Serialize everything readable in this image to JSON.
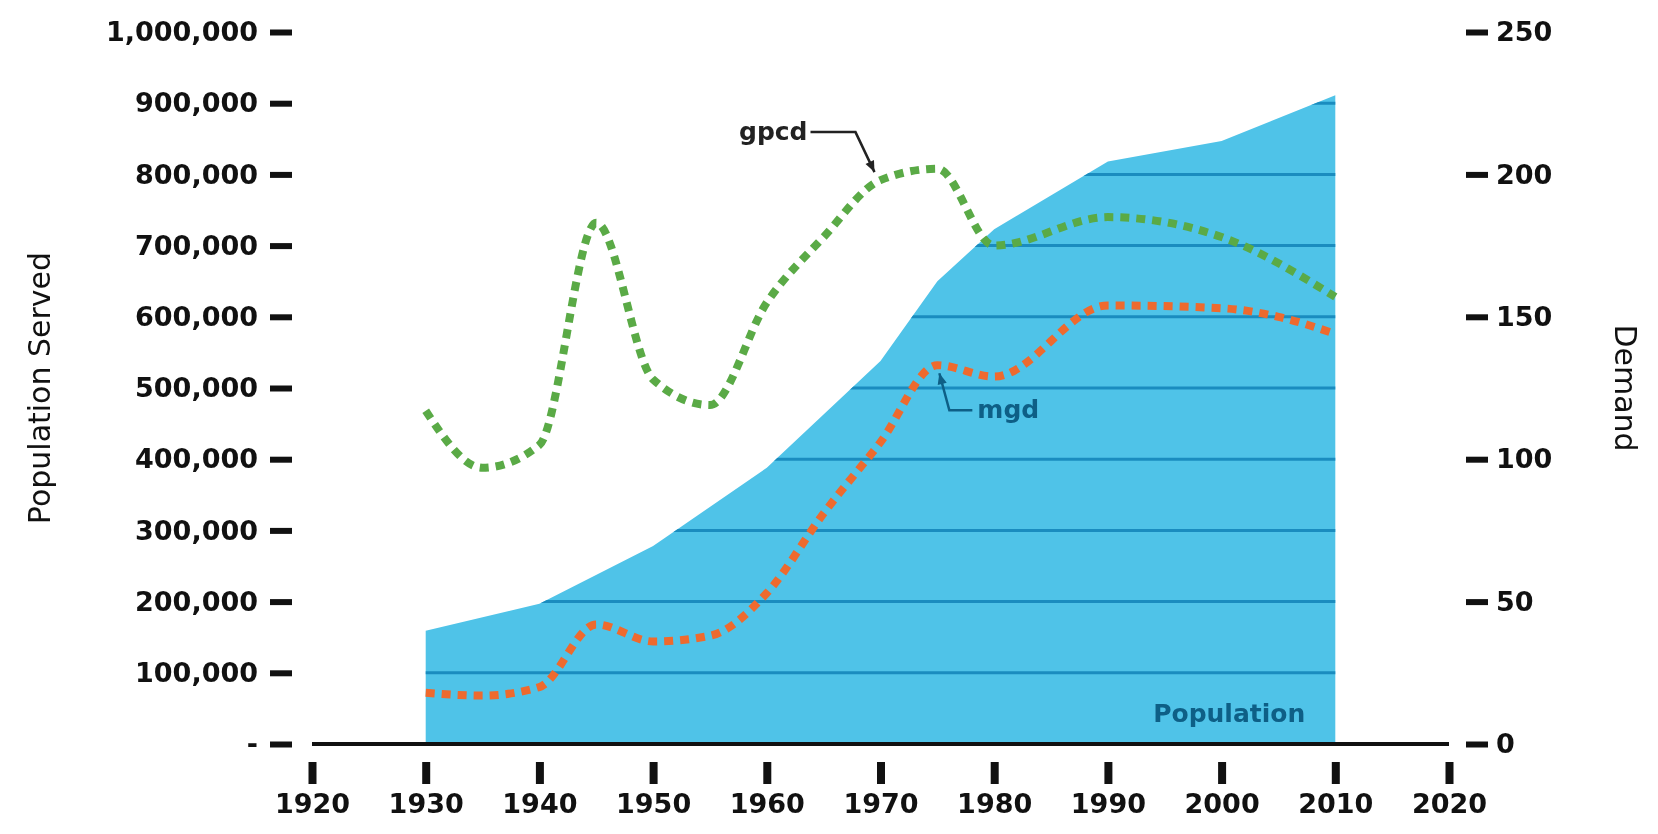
{
  "chart_data": {
    "type": "area",
    "ylabel": "Population Served",
    "y2label": "Demand",
    "xlim": [
      1920,
      2020
    ],
    "xticks": [
      1920,
      1930,
      1940,
      1950,
      1960,
      1970,
      1980,
      1990,
      2000,
      2010,
      2020
    ],
    "ylim": [
      0,
      1000000
    ],
    "yticks": [
      {
        "value": 0,
        "label": "-"
      },
      {
        "value": 100000,
        "label": "100,000"
      },
      {
        "value": 200000,
        "label": "200,000"
      },
      {
        "value": 300000,
        "label": "300,000"
      },
      {
        "value": 400000,
        "label": "400,000"
      },
      {
        "value": 500000,
        "label": "500,000"
      },
      {
        "value": 600000,
        "label": "600,000"
      },
      {
        "value": 700000,
        "label": "700,000"
      },
      {
        "value": 800000,
        "label": "800,000"
      },
      {
        "value": 900000,
        "label": "900,000"
      },
      {
        "value": 1000000,
        "label": "1,000,000"
      }
    ],
    "y2lim": [
      0,
      250
    ],
    "y2ticks": [
      0,
      50,
      100,
      150,
      200,
      250
    ],
    "grid": "y",
    "legend": false,
    "marker": "none",
    "line_style": "dashed",
    "series": [
      {
        "name": "Population",
        "type": "area",
        "color": "#4fc3e8",
        "x": [
          1930,
          1940,
          1950,
          1960,
          1970,
          1975,
          1980,
          1990,
          2000,
          2010
        ],
        "values": [
          159000,
          197000,
          278000,
          388000,
          538000,
          650000,
          723000,
          818000,
          847000,
          911000
        ]
      },
      {
        "name": "gpcd",
        "type": "line",
        "axis": "y2",
        "color": "#5aaa46",
        "x": [
          1930,
          1935,
          1940,
          1945,
          1950,
          1955,
          1960,
          1965,
          1970,
          1975,
          1980,
          1990,
          2000,
          2010
        ],
        "values": [
          117,
          97,
          105,
          183,
          128,
          119,
          155,
          178,
          198,
          202,
          175,
          185,
          178,
          157
        ]
      },
      {
        "name": "mgd",
        "type": "line",
        "axis": "y2",
        "color": "#ee6a2e",
        "x": [
          1930,
          1935,
          1940,
          1945,
          1950,
          1955,
          1960,
          1965,
          1970,
          1975,
          1980,
          1990,
          2000,
          2005,
          2010
        ],
        "values": [
          18,
          17,
          20,
          42,
          36,
          38,
          53,
          81,
          106,
          133,
          129,
          154,
          153,
          150,
          144
        ]
      }
    ]
  }
}
